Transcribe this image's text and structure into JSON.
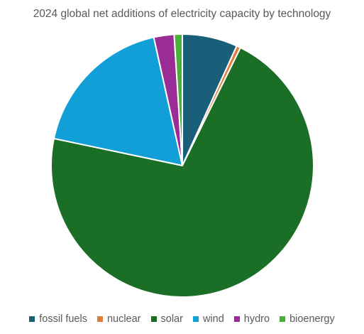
{
  "chart_data": {
    "type": "pie",
    "title": "2024 global net additions of electricity capacity by technology",
    "categories": [
      "fossil fuels",
      "nuclear",
      "solar",
      "wind",
      "hydro",
      "bioenergy"
    ],
    "values": [
      6.8,
      0.5,
      71.0,
      18.2,
      2.5,
      1.0
    ],
    "colors": [
      "#1a5f7a",
      "#e07b39",
      "#1a6e26",
      "#129fd8",
      "#9a2c96",
      "#4caf3a"
    ],
    "legend_position": "bottom"
  }
}
